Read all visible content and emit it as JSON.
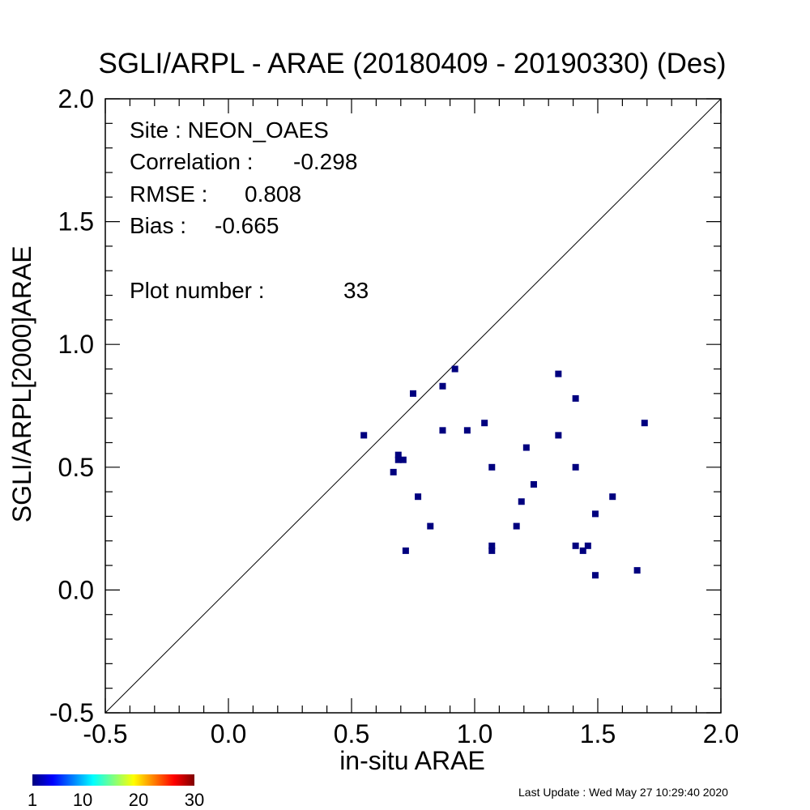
{
  "chart_data": {
    "type": "scatter",
    "title": "SGLI/ARPL - ARAE (20180409 - 20190330) (Des)",
    "xlabel": "in-situ ARAE",
    "ylabel_left": "SGLI/ARPL[2000]",
    "ylabel_right": "ARAE",
    "xlim": [
      -0.5,
      2.0
    ],
    "ylim": [
      -0.5,
      2.0
    ],
    "xticks": [
      "-0.5",
      "0.0",
      "0.5",
      "1.0",
      "1.5",
      "2.0"
    ],
    "yticks": [
      "-0.5",
      "0.0",
      "0.5",
      "1.0",
      "1.5",
      "2.0"
    ],
    "one_to_one_line": true,
    "marker_color": "#00007f",
    "points": [
      {
        "x": 0.55,
        "y": 0.63
      },
      {
        "x": 0.67,
        "y": 0.48
      },
      {
        "x": 0.69,
        "y": 0.55
      },
      {
        "x": 0.69,
        "y": 0.53
      },
      {
        "x": 0.71,
        "y": 0.53
      },
      {
        "x": 0.72,
        "y": 0.16
      },
      {
        "x": 0.75,
        "y": 0.8
      },
      {
        "x": 0.77,
        "y": 0.38
      },
      {
        "x": 0.82,
        "y": 0.26
      },
      {
        "x": 0.87,
        "y": 0.83
      },
      {
        "x": 0.87,
        "y": 0.65
      },
      {
        "x": 0.92,
        "y": 0.9
      },
      {
        "x": 0.97,
        "y": 0.65
      },
      {
        "x": 1.04,
        "y": 0.68
      },
      {
        "x": 1.07,
        "y": 0.5
      },
      {
        "x": 1.07,
        "y": 0.18
      },
      {
        "x": 1.07,
        "y": 0.16
      },
      {
        "x": 1.17,
        "y": 0.26
      },
      {
        "x": 1.19,
        "y": 0.36
      },
      {
        "x": 1.21,
        "y": 0.58
      },
      {
        "x": 1.24,
        "y": 0.43
      },
      {
        "x": 1.34,
        "y": 0.88
      },
      {
        "x": 1.34,
        "y": 0.63
      },
      {
        "x": 1.41,
        "y": 0.78
      },
      {
        "x": 1.41,
        "y": 0.5
      },
      {
        "x": 1.41,
        "y": 0.18
      },
      {
        "x": 1.44,
        "y": 0.16
      },
      {
        "x": 1.46,
        "y": 0.18
      },
      {
        "x": 1.49,
        "y": 0.31
      },
      {
        "x": 1.49,
        "y": 0.06
      },
      {
        "x": 1.56,
        "y": 0.38
      },
      {
        "x": 1.66,
        "y": 0.08
      },
      {
        "x": 1.69,
        "y": 0.68
      }
    ],
    "stats": {
      "site": "Site : NEON_OAES",
      "correlation_label": "Correlation :",
      "correlation_value": "-0.298",
      "rmse_label": "RMSE :",
      "rmse_value": "0.808",
      "bias_label": "Bias :",
      "bias_value": "-0.665",
      "plot_number_label": "Plot number :",
      "plot_number_value": "33"
    },
    "colorbar": {
      "labels": [
        "1",
        "10",
        "20",
        "30"
      ],
      "range": [
        1,
        30
      ],
      "colormap": "jet"
    }
  },
  "footer": {
    "last_update": "Last Update : Wed May 27 10:29:40 2020"
  }
}
